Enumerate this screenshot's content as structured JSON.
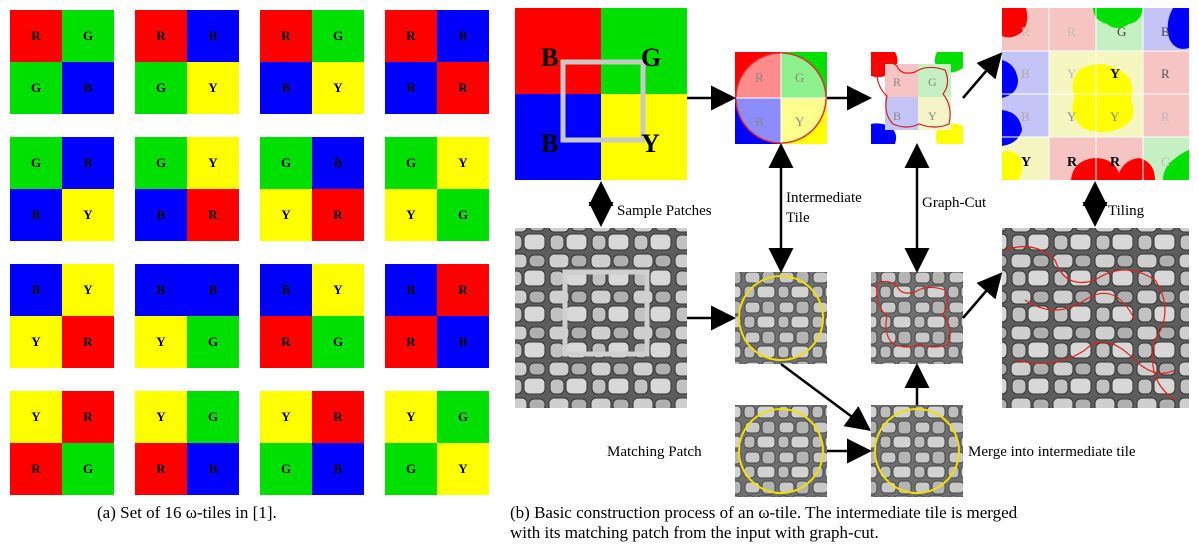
{
  "colors": {
    "R": "#ff0000",
    "G": "#00e000",
    "B": "#0000ff",
    "Y": "#ffff00"
  },
  "tiles": [
    [
      "R",
      "G",
      "G",
      "B"
    ],
    [
      "R",
      "B",
      "G",
      "Y"
    ],
    [
      "R",
      "G",
      "B",
      "Y"
    ],
    [
      "R",
      "B",
      "B",
      "R"
    ],
    [
      "G",
      "B",
      "B",
      "Y"
    ],
    [
      "G",
      "Y",
      "B",
      "R"
    ],
    [
      "G",
      "B",
      "Y",
      "R"
    ],
    [
      "G",
      "Y",
      "Y",
      "G"
    ],
    [
      "B",
      "Y",
      "Y",
      "R"
    ],
    [
      "B",
      "B",
      "Y",
      "G"
    ],
    [
      "B",
      "Y",
      "R",
      "G"
    ],
    [
      "B",
      "R",
      "R",
      "B"
    ],
    [
      "Y",
      "R",
      "R",
      "G"
    ],
    [
      "Y",
      "G",
      "R",
      "B"
    ],
    [
      "Y",
      "R",
      "G",
      "B"
    ],
    [
      "Y",
      "G",
      "G",
      "Y"
    ]
  ],
  "caption_a": "(a)  Set of 16 ω-tiles in [1].",
  "caption_b_line1": "(b)  Basic construction process of an ω-tile. The intermediate tile is merged",
  "caption_b_line2": "with its matching patch from the input with graph-cut.",
  "labels": {
    "sample_patches": "Sample Patches",
    "intermediate_tile_1": "Intermediate",
    "intermediate_tile_2": "Tile",
    "graph_cut": "Graph-Cut",
    "tiling": "Tiling",
    "matching_patch": "Matching Patch",
    "merge": "Merge into intermediate tile"
  },
  "input_letters": [
    "R",
    "G",
    "B",
    "Y"
  ],
  "small_letters": [
    "R",
    "G",
    "B",
    "Y"
  ],
  "result_letters": [
    "R",
    "G",
    "G",
    "B",
    "Y",
    "Y",
    "R",
    "B",
    "Y",
    "Y",
    "R",
    "Y",
    "R",
    "R",
    "G"
  ]
}
